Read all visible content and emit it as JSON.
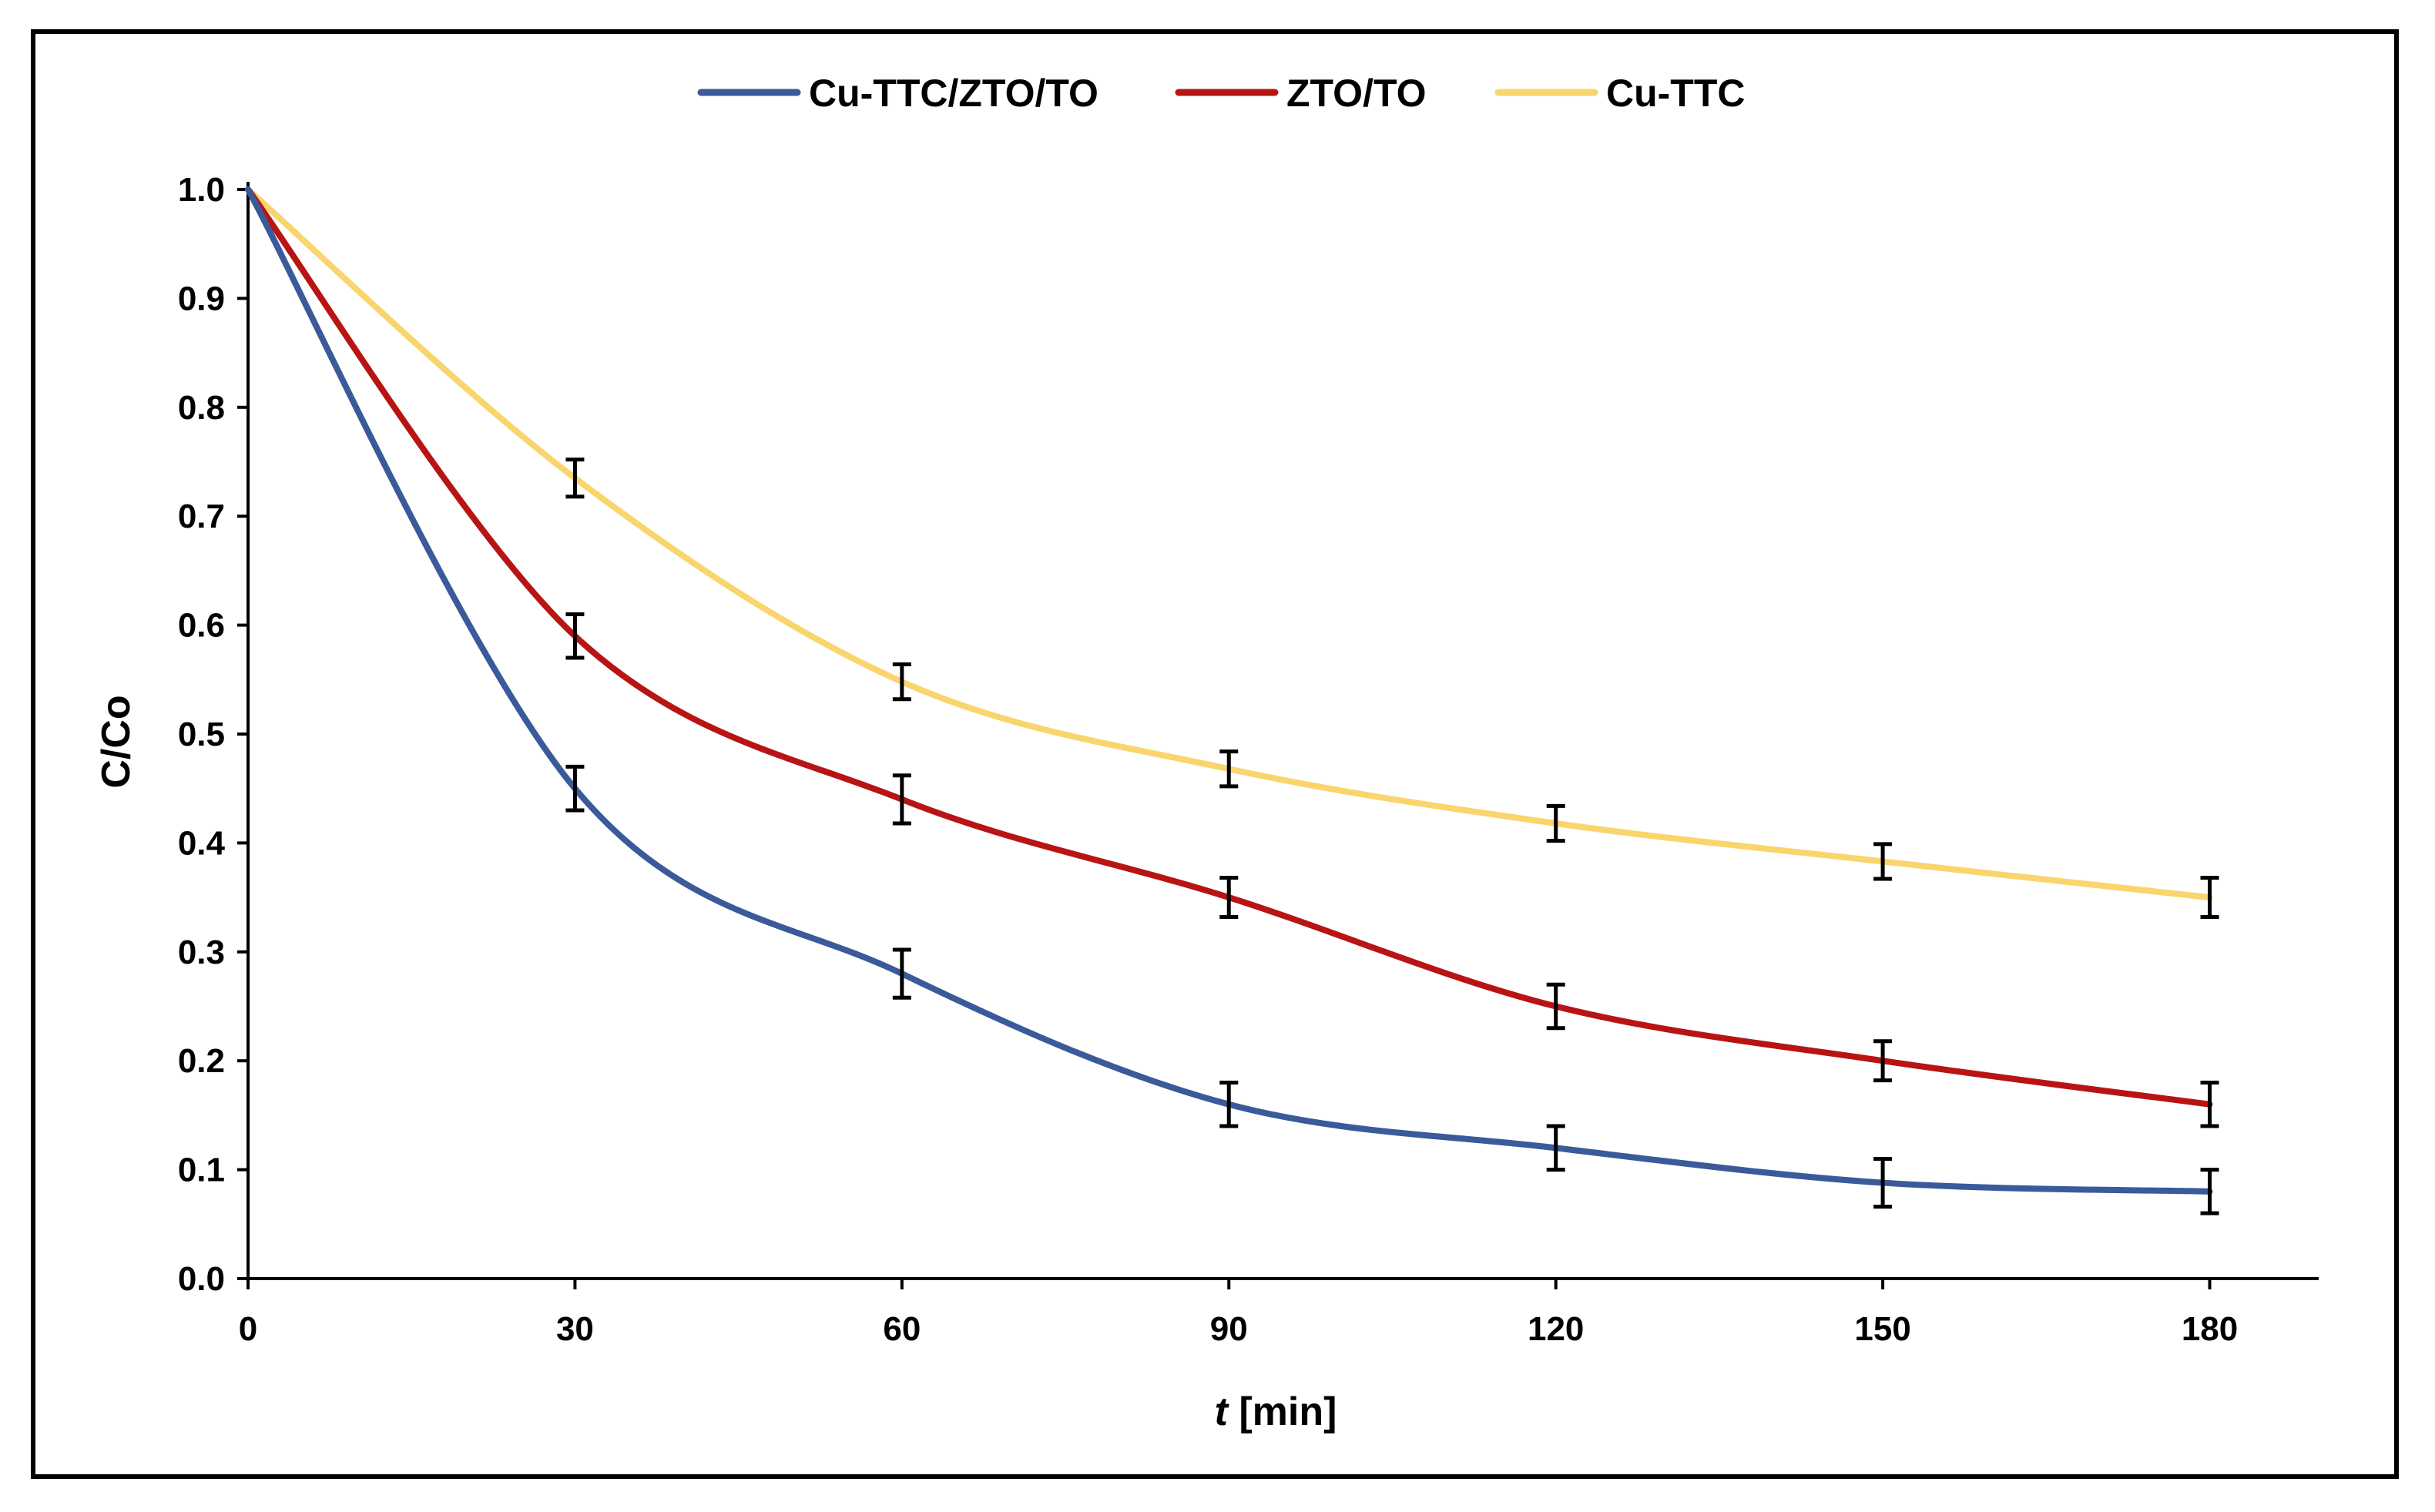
{
  "chart_data": {
    "type": "line",
    "title": "",
    "xlabel": "t [min]",
    "xlabel_italic_part": "t",
    "xlabel_rest": " [min]",
    "ylabel": "C/Co",
    "xlim": [
      0,
      190
    ],
    "ylim": [
      0,
      1.0
    ],
    "x": [
      0,
      30,
      60,
      90,
      120,
      150,
      180
    ],
    "x_ticks": [
      "0",
      "30",
      "60",
      "90",
      "120",
      "150",
      "180"
    ],
    "y_ticks": [
      "0.0",
      "0.1",
      "0.2",
      "0.3",
      "0.4",
      "0.5",
      "0.6",
      "0.7",
      "0.8",
      "0.9",
      "1.0"
    ],
    "legend_position": "top-center",
    "series": [
      {
        "name": "Cu-TTC/ZTO/TO",
        "color": "#3a5a9a",
        "values": [
          1.0,
          0.45,
          0.28,
          0.16,
          0.12,
          0.088,
          0.08
        ],
        "errors": [
          0,
          0.02,
          0.022,
          0.02,
          0.02,
          0.022,
          0.02
        ]
      },
      {
        "name": "ZTO/TO",
        "color": "#b81414",
        "values": [
          1.0,
          0.59,
          0.44,
          0.35,
          0.25,
          0.2,
          0.16
        ],
        "errors": [
          0,
          0.02,
          0.022,
          0.018,
          0.02,
          0.018,
          0.02
        ]
      },
      {
        "name": "Cu-TTC",
        "color": "#f9d56e",
        "values": [
          1.0,
          0.735,
          0.548,
          0.468,
          0.418,
          0.383,
          0.35
        ],
        "errors": [
          0,
          0.017,
          0.016,
          0.016,
          0.016,
          0.016,
          0.018
        ]
      }
    ]
  }
}
